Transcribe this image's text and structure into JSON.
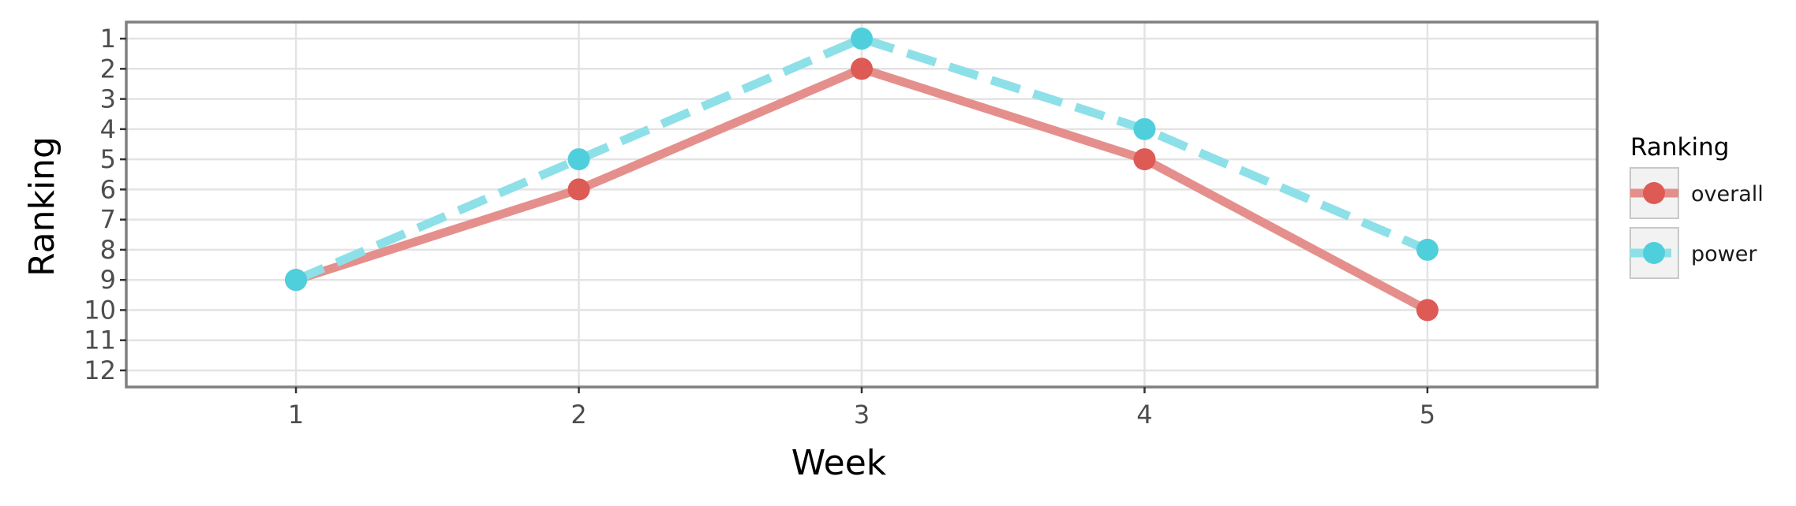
{
  "chart_data": {
    "type": "line",
    "title": "",
    "xlabel": "Week",
    "ylabel": "Ranking",
    "x": [
      1,
      2,
      3,
      4,
      5
    ],
    "xlim": [
      0.4,
      5.6
    ],
    "ylim": [
      12.55,
      0.45
    ],
    "y_reversed": true,
    "x_ticks": [
      1,
      2,
      3,
      4,
      5
    ],
    "y_ticks": [
      1,
      2,
      3,
      4,
      5,
      6,
      7,
      8,
      9,
      10,
      11,
      12
    ],
    "grid": true,
    "legend": {
      "title": "Ranking",
      "position": "right"
    },
    "series": [
      {
        "name": "overall",
        "values": [
          9,
          6,
          2,
          5,
          10
        ],
        "color": "#dd5a55",
        "line_color": "#e58f8c",
        "line_style": "solid"
      },
      {
        "name": "power",
        "values": [
          9,
          5,
          1,
          4,
          8
        ],
        "color": "#4fcfdc",
        "line_color": "#8de0e8",
        "line_style": "dashed"
      }
    ]
  }
}
